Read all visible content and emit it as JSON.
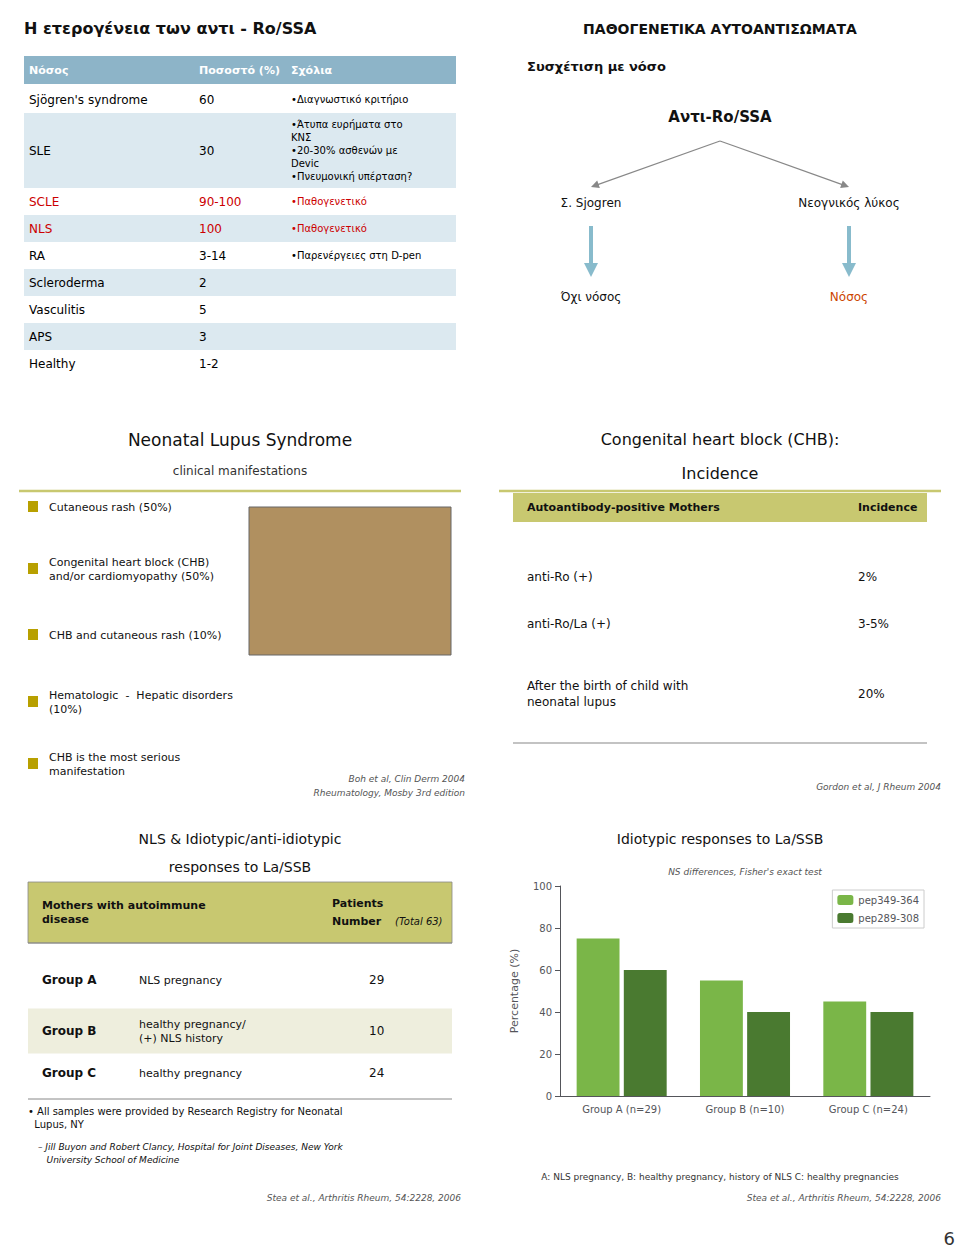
{
  "chart_data": [
    {
      "type": "table",
      "title": "Η ετερογένεια των αντι - Ro/SSA",
      "columns": [
        "Νόσος",
        "Ποσοστό (%)",
        "Σχόλια"
      ],
      "rows": [
        {
          "cells": [
            "Sjögren's syndrome",
            "60",
            "•Διαγνωστικό κριτήριο"
          ]
        },
        {
          "cells": [
            "SLE",
            "30",
            "•Άτυπα ευρήματα στο\nΚΝΣ\n•20-30% ασθενών με\nDevic\n•Πνευμονική υπέρταση?"
          ]
        },
        {
          "cells": [
            "SCLE",
            "90-100",
            "•Παθογενετικό"
          ],
          "color": "#cc0000"
        },
        {
          "cells": [
            "NLS",
            "100",
            "•Παθογενετικό"
          ],
          "color": "#cc0000"
        },
        {
          "cells": [
            "RA",
            "3-14",
            "•Παρενέργειες στη D-pen"
          ]
        },
        {
          "cells": [
            "Scleroderma",
            "2"
          ]
        },
        {
          "cells": [
            "Vasculitis",
            "5"
          ]
        },
        {
          "cells": [
            "APS",
            "3"
          ]
        },
        {
          "cells": [
            "Healthy",
            "1-2"
          ]
        }
      ]
    },
    {
      "type": "diagram",
      "title": "ΠΑΘΟΓΕΝΕΤΙΚΑ ΑΥΤΟΑΝΤΙΣΩΜΑΤΑ",
      "subtitle": "Συσχέτιση με νόσο",
      "root": "Αντι-Ro/SSA",
      "branches": [
        {
          "label": "Σ. Sjogren",
          "outcome": "Όχι νόσος"
        },
        {
          "label": "Νεογνικός λύκος",
          "outcome": "Νόσος",
          "color": "#cc4400"
        }
      ]
    },
    {
      "type": "text",
      "title": "Neonatal Lupus Syndrome",
      "subtitle": "clinical manifestations",
      "bullets": [
        "Cutaneous rash (50%)",
        "Congenital heart block (CHB)\nand/or cardiomyopathy (50%)",
        "CHB and cutaneous rash (10%)",
        "Hematologic  -  Hepatic disorders\n(10%)",
        "CHB is the most serious\nmanifestation"
      ],
      "references": [
        "Boh et al, Clin Derm 2004",
        "Rheumatology, Mosby 3rd edition"
      ]
    },
    {
      "type": "table",
      "title": "Congenital heart block (CHB):",
      "subtitle": "Incidence",
      "columns": [
        "Autoantibody-positive Mothers",
        "Incidence"
      ],
      "rows": [
        {
          "cells": [
            "anti-Ro (+)",
            "2%"
          ]
        },
        {
          "cells": [
            "anti-Ro/La (+)",
            "3-5%"
          ]
        },
        {
          "cells": [
            "After the birth of child with\nneonatal lupus",
            "20%"
          ]
        }
      ],
      "references": [
        "Gordon et al, J Rheum 2004"
      ]
    },
    {
      "type": "table",
      "title": "NLS & Idiotypic/anti-idiotypic",
      "subtitle": "responses to La/SSB",
      "columns": [
        "Mothers with autoimmune\ndisease",
        "Patients\nNumber"
      ],
      "column_note": "(Total 63)",
      "rows": [
        {
          "cells": [
            "Group A",
            "NLS pregnancy",
            "29"
          ]
        },
        {
          "cells": [
            "Group B",
            "healthy pregnancy/\n(+) NLS history",
            "10"
          ]
        },
        {
          "cells": [
            "Group C",
            "healthy pregnancy",
            "24"
          ]
        }
      ],
      "notes": [
        "• All samples were provided by Research Registry for Neonatal\n  Lupus, NY",
        "– Jill Buyon and Robert Clancy, Hospital for Joint Diseases, New York\n   University School of Medicine"
      ],
      "references": [
        "Stea et al., Arthritis Rheum, 54:2228, 2006"
      ]
    },
    {
      "type": "bar",
      "title": "Idiotypic responses to La/SSB",
      "categories": [
        "Group A (n=29)",
        "Group B (n=10)",
        "Group C (n=24)"
      ],
      "series": [
        {
          "name": "pep349-364",
          "color": "#7ab648",
          "values": [
            75,
            55,
            45
          ]
        },
        {
          "name": "pep289-308",
          "color": "#4a7a30",
          "values": [
            60,
            40,
            40
          ]
        }
      ],
      "ylabel": "Percentage (%)",
      "ylim": [
        0,
        100
      ],
      "yticks": [
        0,
        20,
        40,
        60,
        80,
        100
      ],
      "grid": false,
      "legend": "upper right",
      "annotations": [
        "NS differences, Fisher's exact test",
        "A: NLS pregnancy, B: healthy pregnancy, history of NLS C: healthy pregnancies"
      ],
      "references": [
        "Stea et al., Arthritis Rheum, 54:2228, 2006"
      ]
    }
  ],
  "page_number": "6"
}
